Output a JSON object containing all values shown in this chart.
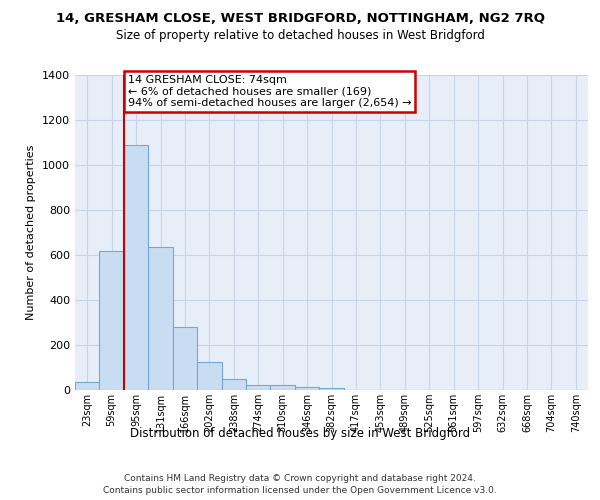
{
  "title": "14, GRESHAM CLOSE, WEST BRIDGFORD, NOTTINGHAM, NG2 7RQ",
  "subtitle": "Size of property relative to detached houses in West Bridgford",
  "xlabel": "Distribution of detached houses by size in West Bridgford",
  "ylabel": "Number of detached properties",
  "footer_line1": "Contains HM Land Registry data © Crown copyright and database right 2024.",
  "footer_line2": "Contains public sector information licensed under the Open Government Licence v3.0.",
  "bin_labels": [
    "23sqm",
    "59sqm",
    "95sqm",
    "131sqm",
    "166sqm",
    "202sqm",
    "238sqm",
    "274sqm",
    "310sqm",
    "346sqm",
    "382sqm",
    "417sqm",
    "453sqm",
    "489sqm",
    "525sqm",
    "561sqm",
    "597sqm",
    "632sqm",
    "668sqm",
    "704sqm",
    "740sqm"
  ],
  "bar_values": [
    35,
    620,
    1090,
    635,
    280,
    125,
    48,
    22,
    22,
    15,
    8,
    0,
    0,
    0,
    0,
    0,
    0,
    0,
    0,
    0,
    0
  ],
  "bar_color": "#c9ddf2",
  "bar_edge_color": "#6fa8dc",
  "grid_color": "#c8d4e8",
  "background_color": "#e8eef8",
  "vline_color": "#cc0000",
  "annotation_text": "14 GRESHAM CLOSE: 74sqm\n← 6% of detached houses are smaller (169)\n94% of semi-detached houses are larger (2,654) →",
  "annotation_box_color": "#ffffff",
  "annotation_box_edge": "#cc0000",
  "ylim": [
    0,
    1400
  ],
  "yticks": [
    0,
    200,
    400,
    600,
    800,
    1000,
    1200,
    1400
  ]
}
